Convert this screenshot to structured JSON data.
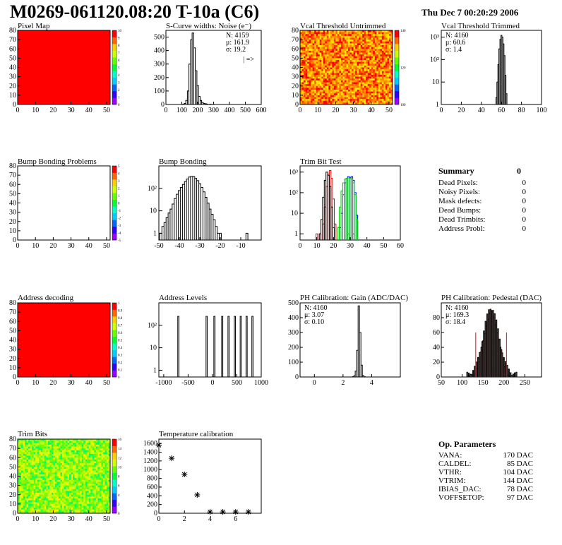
{
  "header": {
    "title": "M0269-061120.08:20 T-10a (C6)",
    "date": "Thu Dec  7 00:20:29 2006"
  },
  "colors": {
    "frame": "#000000",
    "red_fill": "#ff0000",
    "line_red": "#ff0000",
    "line_green": "#00cc00",
    "line_blue": "#0000ff",
    "stat_red": "#ff0000"
  },
  "chart_data": [
    {
      "id": "pixel-map",
      "type": "heatmap",
      "title": "Pixel Map",
      "xlim": [
        0,
        52
      ],
      "ylim": [
        0,
        80
      ],
      "xticks": [
        "0",
        "10",
        "20",
        "30",
        "40",
        "50"
      ],
      "yticks": [
        "0",
        "10",
        "20",
        "30",
        "40",
        "50",
        "60",
        "70",
        "80"
      ],
      "fill": "uniform",
      "value": 10,
      "palette_ticks": [
        "0",
        "1",
        "2",
        "3",
        "4",
        "5",
        "6",
        "7",
        "8",
        "9",
        "10"
      ]
    },
    {
      "id": "scurve-widths",
      "type": "histogram",
      "title": "S-Curve widths: Noise (e⁻)",
      "xlim": [
        0,
        600
      ],
      "ylim": [
        0,
        550
      ],
      "xticks": [
        "0",
        "100",
        "200",
        "300",
        "400",
        "500",
        "600"
      ],
      "yticks": [
        "0",
        "100",
        "200",
        "300",
        "400",
        "500"
      ],
      "bins": [
        [
          110,
          2
        ],
        [
          120,
          8
        ],
        [
          130,
          30
        ],
        [
          140,
          100
        ],
        [
          150,
          300
        ],
        [
          160,
          480
        ],
        [
          170,
          530
        ],
        [
          180,
          420
        ],
        [
          190,
          250
        ],
        [
          200,
          140
        ],
        [
          210,
          60
        ],
        [
          220,
          30
        ],
        [
          230,
          15
        ],
        [
          240,
          8
        ],
        [
          250,
          5
        ],
        [
          260,
          3
        ],
        [
          280,
          2
        ],
        [
          300,
          1
        ]
      ],
      "bin_width": 10,
      "stats": [
        "N: 4159",
        "μ: 161.9",
        "σ: 19.2"
      ],
      "note": "| =>"
    },
    {
      "id": "vcal-untrimmed",
      "type": "heatmap",
      "title": "Vcal Threshold Untrimmed",
      "xlim": [
        0,
        52
      ],
      "ylim": [
        0,
        80
      ],
      "xticks": [
        "0",
        "10",
        "20",
        "30",
        "40",
        "50"
      ],
      "yticks": [
        "0",
        "10",
        "20",
        "30",
        "40",
        "50",
        "60",
        "70",
        "80"
      ],
      "fill": "noise-warm",
      "palette_ticks": [
        "100",
        "120",
        "140"
      ]
    },
    {
      "id": "vcal-trimmed",
      "type": "histogram",
      "title": "Vcal Threshold Trimmed",
      "xlim": [
        0,
        100
      ],
      "ylog": [
        1,
        2000
      ],
      "xticks": [
        "0",
        "20",
        "40",
        "60",
        "80",
        "100"
      ],
      "yticks": [
        "1",
        "10",
        "10²",
        "10³"
      ],
      "bins": [
        [
          55,
          2
        ],
        [
          56,
          10
        ],
        [
          57,
          60
        ],
        [
          58,
          300
        ],
        [
          59,
          800
        ],
        [
          60,
          1200
        ],
        [
          61,
          1000
        ],
        [
          62,
          500
        ],
        [
          63,
          150
        ],
        [
          64,
          20
        ],
        [
          65,
          3
        ],
        [
          85,
          1
        ]
      ],
      "bin_width": 1,
      "stats": [
        "N: 4160",
        "μ: 60.6",
        "σ:  1.4"
      ]
    },
    {
      "id": "bump-bonding-problems",
      "type": "heatmap",
      "title": "Bump Bonding Problems",
      "xlim": [
        0,
        52
      ],
      "ylim": [
        0,
        80
      ],
      "xticks": [
        "0",
        "10",
        "20",
        "30",
        "40",
        "50"
      ],
      "yticks": [
        "0",
        "10",
        "20",
        "30",
        "40",
        "50",
        "60",
        "70",
        "80"
      ],
      "fill": "empty",
      "palette_ticks": [
        "-5",
        "-4",
        "-3",
        "-2",
        "-1",
        "0",
        "1",
        "2",
        "3",
        "4",
        "5"
      ]
    },
    {
      "id": "bump-bonding",
      "type": "histogram",
      "title": "Bump Bonding",
      "xlim": [
        -50,
        0
      ],
      "ylog": [
        0.5,
        1000
      ],
      "xticks": [
        "-50",
        "-40",
        "-30",
        "-20",
        "-10"
      ],
      "yticks": [
        "1",
        "10",
        "10²"
      ],
      "bins": [
        [
          -49,
          1
        ],
        [
          -48,
          2
        ],
        [
          -47,
          3
        ],
        [
          -46,
          5
        ],
        [
          -45,
          8
        ],
        [
          -44,
          12
        ],
        [
          -43,
          20
        ],
        [
          -42,
          35
        ],
        [
          -41,
          55
        ],
        [
          -40,
          80
        ],
        [
          -39,
          110
        ],
        [
          -38,
          150
        ],
        [
          -37,
          200
        ],
        [
          -36,
          260
        ],
        [
          -35,
          320
        ],
        [
          -34,
          340
        ],
        [
          -33,
          330
        ],
        [
          -32,
          280
        ],
        [
          -31,
          220
        ],
        [
          -30,
          160
        ],
        [
          -29,
          110
        ],
        [
          -28,
          70
        ],
        [
          -27,
          40
        ],
        [
          -26,
          22
        ],
        [
          -25,
          12
        ],
        [
          -24,
          7
        ],
        [
          -23,
          4
        ],
        [
          -22,
          2
        ],
        [
          -21,
          1
        ],
        [
          -20,
          1
        ],
        [
          -7,
          1
        ]
      ],
      "bin_width": 1
    },
    {
      "id": "trim-bit-test",
      "type": "histogram",
      "title": "Trim Bit Test",
      "xlim": [
        0,
        60
      ],
      "ylog": [
        0.5,
        2000
      ],
      "xticks": [
        "0",
        "10",
        "20",
        "30",
        "40",
        "50",
        "60"
      ],
      "yticks": [
        "1",
        "10",
        "10²",
        "10³"
      ],
      "series": [
        {
          "color": "red",
          "bins": [
            [
              10,
              1
            ],
            [
              12,
              1
            ],
            [
              14,
              3
            ],
            [
              15,
              20
            ],
            [
              16,
              200
            ],
            [
              17,
              800
            ],
            [
              18,
              1200
            ],
            [
              19,
              500
            ],
            [
              20,
              50
            ],
            [
              21,
              3
            ],
            [
              29,
              1
            ],
            [
              32,
              1
            ]
          ]
        },
        {
          "color": "black",
          "bins": [
            [
              12,
              1
            ],
            [
              13,
              5
            ],
            [
              14,
              60
            ],
            [
              15,
              400
            ],
            [
              16,
              1000
            ],
            [
              17,
              700
            ],
            [
              18,
              200
            ],
            [
              19,
              20
            ],
            [
              20,
              2
            ]
          ]
        },
        {
          "color": "blue",
          "bins": [
            [
              24,
              2
            ],
            [
              25,
              10
            ],
            [
              26,
              80
            ],
            [
              27,
              300
            ],
            [
              28,
              500
            ],
            [
              29,
              600
            ],
            [
              30,
              550
            ],
            [
              31,
              600
            ],
            [
              32,
              400
            ],
            [
              33,
              100
            ],
            [
              34,
              8
            ]
          ]
        },
        {
          "color": "green",
          "bins": [
            [
              23,
              2
            ],
            [
              24,
              20
            ],
            [
              25,
              120
            ],
            [
              26,
              300
            ],
            [
              27,
              450
            ],
            [
              28,
              500
            ],
            [
              29,
              520
            ],
            [
              30,
              500
            ],
            [
              31,
              480
            ],
            [
              32,
              300
            ],
            [
              33,
              80
            ],
            [
              34,
              5
            ]
          ]
        }
      ],
      "bin_width": 1
    },
    {
      "id": "address-decoding",
      "type": "heatmap",
      "title": "Address decoding",
      "xlim": [
        0,
        52
      ],
      "ylim": [
        0,
        80
      ],
      "xticks": [
        "0",
        "10",
        "20",
        "30",
        "40",
        "50"
      ],
      "yticks": [
        "0",
        "10",
        "20",
        "30",
        "40",
        "50",
        "60",
        "70",
        "80"
      ],
      "fill": "uniform",
      "value": 1,
      "palette_ticks": [
        "0",
        "0.1",
        "0.2",
        "0.3",
        "0.4",
        "0.5",
        "0.6",
        "0.7",
        "0.8",
        "0.9",
        "1"
      ]
    },
    {
      "id": "address-levels",
      "type": "histogram",
      "title": "Address Levels",
      "xlim": [
        -1100,
        1000
      ],
      "ylog": [
        0.5,
        1000
      ],
      "xticks": [
        "-1000",
        "-500",
        "0",
        "500",
        "1000"
      ],
      "yticks": [
        "1",
        "10",
        "10²"
      ],
      "peaks": [
        -700,
        -120,
        40,
        200,
        330,
        460,
        580,
        700,
        820
      ],
      "peak_height": 250
    },
    {
      "id": "ph-gain",
      "type": "histogram",
      "title": "PH Calibration: Gain (ADC/DAC)",
      "xlim": [
        -1,
        6
      ],
      "ylim": [
        0,
        500
      ],
      "xticks": [
        "0",
        "2",
        "4"
      ],
      "yticks": [
        "0",
        "100",
        "200",
        "300",
        "400",
        "500"
      ],
      "bins": [
        [
          2.7,
          2
        ],
        [
          2.8,
          8
        ],
        [
          2.9,
          40
        ],
        [
          3.0,
          180
        ],
        [
          3.1,
          480
        ],
        [
          3.2,
          300
        ],
        [
          3.3,
          80
        ],
        [
          3.4,
          10
        ],
        [
          3.5,
          2
        ]
      ],
      "bin_width": 0.1,
      "stats": [
        "N: 4160",
        "μ: 3.07",
        "σ: 0.10"
      ]
    },
    {
      "id": "ph-pedestal",
      "type": "histogram",
      "title": "PH Calibration: Pedestal (DAC)",
      "xlim": [
        50,
        290
      ],
      "ylim": [
        0,
        100
      ],
      "xticks": [
        "50",
        "100",
        "150",
        "200",
        "250"
      ],
      "yticks": [
        "0",
        "20",
        "40",
        "60",
        "80"
      ],
      "stats": [
        "N: 4160",
        "μ: 169.3",
        "σ: 18.4"
      ],
      "stats_red": [
        1,
        2
      ],
      "mean": 169.3,
      "sigma": 18.4,
      "peak": 90
    },
    {
      "id": "trim-bits",
      "type": "heatmap",
      "title": "Trim Bits",
      "xlim": [
        0,
        52
      ],
      "ylim": [
        0,
        80
      ],
      "xticks": [
        "0",
        "10",
        "20",
        "30",
        "40",
        "50"
      ],
      "yticks": [
        "0",
        "10",
        "20",
        "30",
        "40",
        "50",
        "60",
        "70",
        "80"
      ],
      "fill": "noise-green",
      "palette_ticks": [
        "0",
        "2",
        "4",
        "6",
        "8",
        "10",
        "12",
        "14",
        "16"
      ]
    },
    {
      "id": "temperature-calibration",
      "type": "scatter",
      "title": "Temperature calibration",
      "xlim": [
        0,
        8
      ],
      "ylim": [
        0,
        1700
      ],
      "xticks": [
        "0",
        "2",
        "4",
        "6"
      ],
      "yticks": [
        "0",
        "200",
        "400",
        "600",
        "800",
        "1000",
        "1200",
        "1400",
        "1600"
      ],
      "points": [
        [
          0,
          1560
        ],
        [
          1,
          1260
        ],
        [
          2,
          890
        ],
        [
          3,
          420
        ],
        [
          4,
          30
        ],
        [
          5,
          30
        ],
        [
          6,
          30
        ],
        [
          7,
          30
        ]
      ]
    }
  ],
  "summary": {
    "title": "Summary",
    "total": "0",
    "rows": [
      {
        "label": "Dead Pixels:",
        "value": "0"
      },
      {
        "label": "Noisy Pixels:",
        "value": "0"
      },
      {
        "label": "Mask defects:",
        "value": "0"
      },
      {
        "label": "Dead Bumps:",
        "value": "0"
      },
      {
        "label": "Dead Trimbits:",
        "value": "0"
      },
      {
        "label": "Address Probl:",
        "value": "0"
      }
    ]
  },
  "op_params": {
    "title": "Op. Parameters",
    "rows": [
      {
        "label": "VANA:",
        "value": "170 DAC"
      },
      {
        "label": "CALDEL:",
        "value": "85 DAC"
      },
      {
        "label": "VTHR:",
        "value": "104 DAC"
      },
      {
        "label": "VTRIM:",
        "value": "144 DAC"
      },
      {
        "label": "IBIAS_DAC:",
        "value": "78 DAC"
      },
      {
        "label": "VOFFSETOP:",
        "value": "97 DAC"
      }
    ]
  }
}
